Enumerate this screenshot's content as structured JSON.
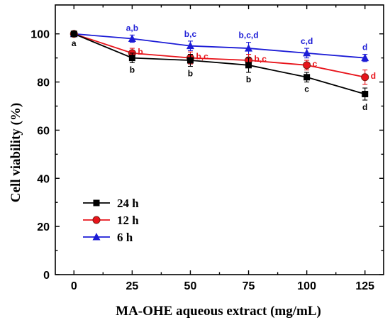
{
  "chart_data": {
    "type": "line",
    "title": "",
    "xlabel": "MA-OHE aqueous extract (mg/mL)",
    "ylabel": "Cell viability (%)",
    "x": [
      0,
      25,
      50,
      75,
      100,
      125
    ],
    "xticks": [
      0,
      25,
      50,
      75,
      100,
      125
    ],
    "yticks": [
      0,
      20,
      40,
      60,
      80,
      100
    ],
    "xlim": [
      -8,
      133
    ],
    "ylim": [
      0,
      112
    ],
    "grid": false,
    "legend_position": "bottom-left",
    "series": [
      {
        "name": "24 h",
        "color": "#000000",
        "marker": "square",
        "values": [
          100,
          90,
          89,
          87,
          82,
          75
        ],
        "errors": [
          1.0,
          2.0,
          2.5,
          3.0,
          2.0,
          2.5
        ],
        "labels": [
          "a",
          "b",
          "b",
          "b",
          "c",
          "d"
        ]
      },
      {
        "name": "12 h",
        "color": "#e8141b",
        "marker": "circle",
        "values": [
          100,
          92,
          90,
          89,
          87,
          82
        ],
        "errors": [
          1.0,
          2.0,
          2.5,
          2.5,
          2.0,
          3.0
        ],
        "labels": [
          "",
          "b",
          "b,c",
          "b,c",
          "c",
          "d"
        ]
      },
      {
        "name": "6 h",
        "color": "#1c1cd6",
        "marker": "triangle",
        "values": [
          100,
          98,
          95,
          94,
          92,
          90
        ],
        "errors": [
          1.0,
          1.5,
          2.0,
          2.5,
          2.0,
          1.5
        ],
        "labels": [
          "",
          "a,b",
          "b,c",
          "b,c,d",
          "c,d",
          "d"
        ]
      }
    ]
  }
}
